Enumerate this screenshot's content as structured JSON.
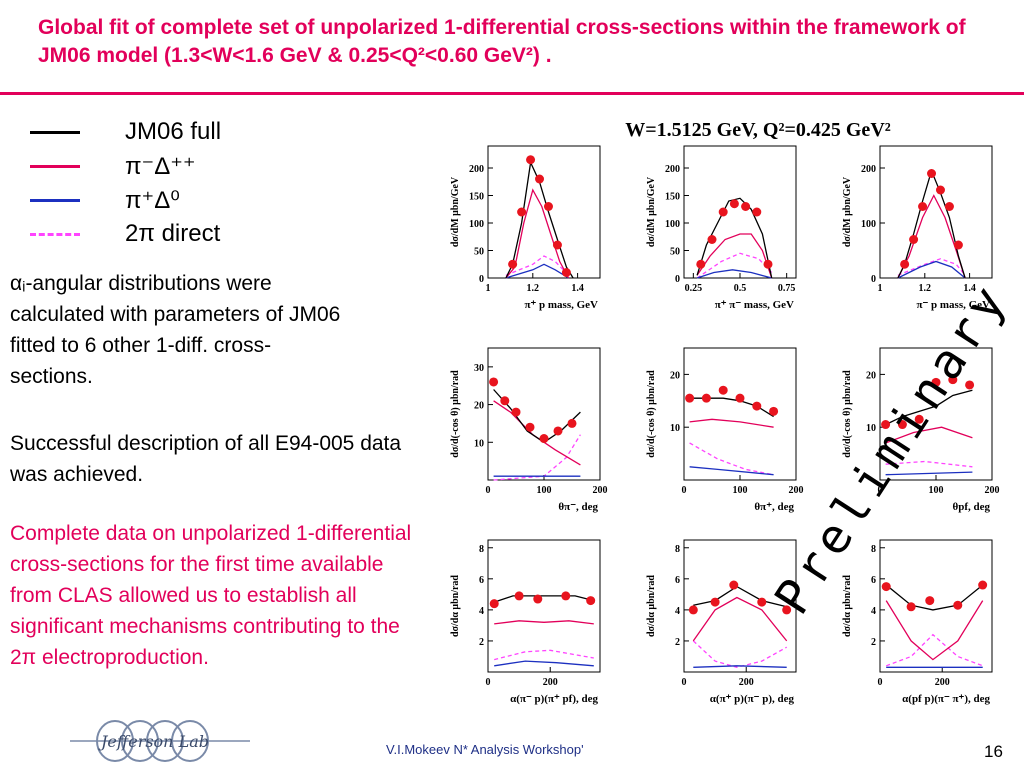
{
  "title": "Global fit of complete set of unpolarized 1-differential cross-sections within the framework of JM06 model (1.3<W<1.6 GeV & 0.25<Q²<0.60 GeV²) .",
  "legend": [
    {
      "label": "JM06 full",
      "color": "#000000",
      "style": "solid"
    },
    {
      "label": "π⁻Δ⁺⁺",
      "color": "#e2005a",
      "style": "solid"
    },
    {
      "label": "π⁺Δ⁰",
      "color": "#1c30c0",
      "style": "solid"
    },
    {
      "label": "2π direct",
      "color": "#ff44ff",
      "style": "dashed"
    }
  ],
  "paragraphs": {
    "p1": "αᵢ-angular distributions were calculated with parameters of JM06  fitted to 6 other 1-diff. cross-sections.",
    "p2": "Successful description of all E94-005 data was achieved.",
    "p3": "Complete data on unpolarized 1-differential cross-sections for the first time available from CLAS allowed us to establish all significant mechanisms contributing to the 2π electroproduction."
  },
  "kinematics_label": "W=1.5125 GeV, Q²=0.425 GeV²",
  "watermark": "Preliminary",
  "footer": {
    "text": "V.I.Mokeev  N* Analysis Workshop'",
    "page": "16",
    "logo": "Jefferson Lab"
  },
  "chart_data": [
    {
      "type": "scatter",
      "ylabel": "dσ/dM μbn/GeV",
      "xlabel": "π⁺ p mass, GeV",
      "xlim": [
        1.0,
        1.5
      ],
      "ylim": [
        0,
        240
      ],
      "xticks": [
        "1",
        "1.2",
        "1.4"
      ],
      "yticks": [
        "0",
        "50",
        "100",
        "150",
        "200"
      ],
      "data": {
        "x": [
          1.11,
          1.15,
          1.19,
          1.23,
          1.27,
          1.31,
          1.35
        ],
        "y": [
          25,
          120,
          215,
          180,
          130,
          60,
          10
        ]
      },
      "full": [
        [
          1.08,
          0
        ],
        [
          1.11,
          25
        ],
        [
          1.15,
          100
        ],
        [
          1.19,
          210
        ],
        [
          1.23,
          175
        ],
        [
          1.27,
          120
        ],
        [
          1.31,
          70
        ],
        [
          1.35,
          20
        ],
        [
          1.38,
          0
        ]
      ],
      "delta_pp": [
        [
          1.08,
          0
        ],
        [
          1.12,
          20
        ],
        [
          1.16,
          100
        ],
        [
          1.2,
          160
        ],
        [
          1.24,
          130
        ],
        [
          1.28,
          80
        ],
        [
          1.32,
          30
        ],
        [
          1.36,
          0
        ]
      ],
      "delta_0": [
        [
          1.08,
          0
        ],
        [
          1.2,
          15
        ],
        [
          1.25,
          25
        ],
        [
          1.3,
          15
        ],
        [
          1.36,
          0
        ]
      ],
      "direct": [
        [
          1.08,
          5
        ],
        [
          1.2,
          25
        ],
        [
          1.25,
          40
        ],
        [
          1.3,
          30
        ],
        [
          1.36,
          5
        ]
      ]
    },
    {
      "type": "scatter",
      "ylabel": "dσ/dM μbn/GeV",
      "xlabel": "π⁺ π⁻ mass, GeV",
      "xlim": [
        0.2,
        0.8
      ],
      "ylim": [
        0,
        240
      ],
      "xticks": [
        "0.25",
        "0.5",
        "0.75"
      ],
      "yticks": [
        "0",
        "50",
        "100",
        "150",
        "200"
      ],
      "data": {
        "x": [
          0.29,
          0.35,
          0.41,
          0.47,
          0.53,
          0.59,
          0.65
        ],
        "y": [
          25,
          70,
          120,
          135,
          130,
          120,
          25
        ]
      },
      "full": [
        [
          0.27,
          5
        ],
        [
          0.32,
          60
        ],
        [
          0.38,
          100
        ],
        [
          0.44,
          140
        ],
        [
          0.5,
          145
        ],
        [
          0.56,
          125
        ],
        [
          0.62,
          80
        ],
        [
          0.67,
          0
        ]
      ],
      "delta_pp": [
        [
          0.27,
          5
        ],
        [
          0.34,
          40
        ],
        [
          0.42,
          70
        ],
        [
          0.5,
          80
        ],
        [
          0.56,
          80
        ],
        [
          0.62,
          50
        ],
        [
          0.67,
          0
        ]
      ],
      "delta_0": [
        [
          0.27,
          0
        ],
        [
          0.36,
          10
        ],
        [
          0.46,
          15
        ],
        [
          0.56,
          10
        ],
        [
          0.67,
          0
        ]
      ],
      "direct": [
        [
          0.27,
          0
        ],
        [
          0.4,
          30
        ],
        [
          0.5,
          45
        ],
        [
          0.6,
          35
        ],
        [
          0.67,
          10
        ]
      ]
    },
    {
      "type": "scatter",
      "ylabel": "dσ/dM μbn/GeV",
      "xlabel": "π⁻ p mass, GeV",
      "xlim": [
        1.0,
        1.5
      ],
      "ylim": [
        0,
        240
      ],
      "xticks": [
        "1",
        "1.2",
        "1.4"
      ],
      "yticks": [
        "0",
        "100",
        "200"
      ],
      "data": {
        "x": [
          1.11,
          1.15,
          1.19,
          1.23,
          1.27,
          1.31,
          1.35
        ],
        "y": [
          25,
          70,
          130,
          190,
          160,
          130,
          60
        ]
      },
      "full": [
        [
          1.08,
          0
        ],
        [
          1.11,
          25
        ],
        [
          1.15,
          80
        ],
        [
          1.19,
          140
        ],
        [
          1.23,
          195
        ],
        [
          1.27,
          155
        ],
        [
          1.31,
          110
        ],
        [
          1.35,
          40
        ],
        [
          1.38,
          0
        ]
      ],
      "delta_pp": [
        [
          1.08,
          0
        ],
        [
          1.13,
          40
        ],
        [
          1.19,
          110
        ],
        [
          1.24,
          150
        ],
        [
          1.29,
          110
        ],
        [
          1.34,
          50
        ],
        [
          1.38,
          0
        ]
      ],
      "delta_0": [
        [
          1.08,
          0
        ],
        [
          1.18,
          20
        ],
        [
          1.25,
          30
        ],
        [
          1.32,
          20
        ],
        [
          1.38,
          0
        ]
      ],
      "direct": [
        [
          1.08,
          5
        ],
        [
          1.2,
          25
        ],
        [
          1.27,
          35
        ],
        [
          1.34,
          25
        ],
        [
          1.38,
          5
        ]
      ]
    },
    {
      "type": "scatter",
      "ylabel": "dσ/d(-cos θ) μbn/rad",
      "xlabel": "θπ⁻, deg",
      "xlim": [
        0,
        200
      ],
      "ylim": [
        0,
        35
      ],
      "xticks": [
        "0",
        "100",
        "200"
      ],
      "yticks": [
        "10",
        "20",
        "30"
      ],
      "data": {
        "x": [
          10,
          30,
          50,
          75,
          100,
          125,
          150
        ],
        "y": [
          26,
          21,
          18,
          14,
          11,
          13,
          15
        ]
      },
      "full": [
        [
          10,
          24
        ],
        [
          40,
          19
        ],
        [
          70,
          13
        ],
        [
          100,
          10
        ],
        [
          130,
          13
        ],
        [
          165,
          18
        ]
      ],
      "delta_pp": [
        [
          10,
          21
        ],
        [
          40,
          18
        ],
        [
          80,
          12
        ],
        [
          120,
          8
        ],
        [
          165,
          4
        ]
      ],
      "delta_0": [
        [
          10,
          1
        ],
        [
          80,
          1
        ],
        [
          165,
          1
        ]
      ],
      "direct": [
        [
          10,
          0
        ],
        [
          100,
          1
        ],
        [
          140,
          6
        ],
        [
          165,
          12
        ]
      ]
    },
    {
      "type": "scatter",
      "ylabel": "dσ/d(-cos θ) μbn/rad",
      "xlabel": "θπ⁺, deg",
      "xlim": [
        0,
        200
      ],
      "ylim": [
        0,
        25
      ],
      "xticks": [
        "0",
        "100",
        "200"
      ],
      "yticks": [
        "10",
        "20"
      ],
      "data": {
        "x": [
          10,
          40,
          70,
          100,
          130,
          160
        ],
        "y": [
          15.5,
          15.5,
          17,
          15.5,
          14,
          13
        ]
      },
      "full": [
        [
          10,
          15.5
        ],
        [
          40,
          15.5
        ],
        [
          70,
          15.5
        ],
        [
          100,
          15
        ],
        [
          130,
          14
        ],
        [
          160,
          12
        ]
      ],
      "delta_pp": [
        [
          10,
          11
        ],
        [
          50,
          11.5
        ],
        [
          100,
          11
        ],
        [
          160,
          10
        ]
      ],
      "delta_0": [
        [
          10,
          2.5
        ],
        [
          60,
          2
        ],
        [
          160,
          1
        ]
      ],
      "direct": [
        [
          10,
          7
        ],
        [
          60,
          4
        ],
        [
          110,
          2
        ],
        [
          160,
          1
        ]
      ]
    },
    {
      "type": "scatter",
      "ylabel": "dσ/d(-cos θ) μbn/rad",
      "xlabel": "θpf, deg",
      "xlim": [
        0,
        200
      ],
      "ylim": [
        0,
        25
      ],
      "xticks": [
        "0",
        "100",
        "200"
      ],
      "yticks": [
        "10",
        "20"
      ],
      "data": {
        "x": [
          10,
          40,
          70,
          100,
          130,
          160
        ],
        "y": [
          10.5,
          10.5,
          11.5,
          18.5,
          19,
          18
        ]
      },
      "full": [
        [
          10,
          10.5
        ],
        [
          40,
          12
        ],
        [
          70,
          13
        ],
        [
          100,
          14
        ],
        [
          130,
          16
        ],
        [
          165,
          17
        ]
      ],
      "delta_pp": [
        [
          10,
          7
        ],
        [
          60,
          9
        ],
        [
          110,
          10
        ],
        [
          165,
          8
        ]
      ],
      "delta_0": [
        [
          10,
          1
        ],
        [
          165,
          1.5
        ]
      ],
      "direct": [
        [
          10,
          3
        ],
        [
          80,
          3.5
        ],
        [
          165,
          2.5
        ]
      ]
    },
    {
      "type": "scatter",
      "ylabel": "dσ/dα μbn/rad",
      "xlabel": "α(π⁻ p)(π⁺ pf), deg",
      "xlim": [
        0,
        360
      ],
      "ylim": [
        0,
        8.5
      ],
      "xticks": [
        "0",
        "200"
      ],
      "yticks": [
        "2",
        "4",
        "6",
        "8"
      ],
      "data": {
        "x": [
          20,
          100,
          160,
          250,
          330
        ],
        "y": [
          4.4,
          4.9,
          4.7,
          4.9,
          4.6
        ]
      },
      "full": [
        [
          20,
          4.5
        ],
        [
          80,
          4.9
        ],
        [
          180,
          4.9
        ],
        [
          280,
          4.9
        ],
        [
          340,
          4.6
        ]
      ],
      "delta_pp": [
        [
          20,
          3.1
        ],
        [
          100,
          3.3
        ],
        [
          180,
          3.2
        ],
        [
          260,
          3.3
        ],
        [
          340,
          3.1
        ]
      ],
      "delta_0": [
        [
          20,
          0.4
        ],
        [
          120,
          0.7
        ],
        [
          220,
          0.6
        ],
        [
          340,
          0.4
        ]
      ],
      "direct": [
        [
          20,
          0.8
        ],
        [
          120,
          1.3
        ],
        [
          200,
          1.4
        ],
        [
          340,
          0.9
        ]
      ]
    },
    {
      "type": "scatter",
      "ylabel": "dσ/dα μbn/rad",
      "xlabel": "α(π⁺ p)(π⁻ p), deg",
      "xlim": [
        0,
        360
      ],
      "ylim": [
        0,
        8.5
      ],
      "xticks": [
        "0",
        "200"
      ],
      "yticks": [
        "2",
        "4",
        "6",
        "8"
      ],
      "data": {
        "x": [
          30,
          100,
          160,
          250,
          330
        ],
        "y": [
          4.0,
          4.5,
          5.6,
          4.5,
          4.0
        ]
      },
      "full": [
        [
          30,
          4.3
        ],
        [
          100,
          4.6
        ],
        [
          170,
          5.5
        ],
        [
          250,
          4.6
        ],
        [
          330,
          4.2
        ]
      ],
      "delta_pp": [
        [
          30,
          2.0
        ],
        [
          100,
          4.0
        ],
        [
          170,
          4.8
        ],
        [
          250,
          4.0
        ],
        [
          330,
          2.0
        ]
      ],
      "delta_0": [
        [
          30,
          0.3
        ],
        [
          170,
          0.4
        ],
        [
          330,
          0.3
        ]
      ],
      "direct": [
        [
          30,
          2.0
        ],
        [
          100,
          0.7
        ],
        [
          170,
          0.3
        ],
        [
          250,
          0.7
        ],
        [
          330,
          1.6
        ]
      ]
    },
    {
      "type": "scatter",
      "ylabel": "dσ/dα μbn/rad",
      "xlabel": "α(pf p)(π⁻ π⁺), deg",
      "xlim": [
        0,
        360
      ],
      "ylim": [
        0,
        8.5
      ],
      "xticks": [
        "0",
        "200"
      ],
      "yticks": [
        "2",
        "4",
        "6",
        "8"
      ],
      "data": {
        "x": [
          20,
          100,
          160,
          250,
          330
        ],
        "y": [
          5.5,
          4.2,
          4.6,
          4.3,
          5.6
        ]
      },
      "full": [
        [
          20,
          5.6
        ],
        [
          100,
          4.3
        ],
        [
          170,
          4.0
        ],
        [
          250,
          4.3
        ],
        [
          330,
          5.6
        ]
      ],
      "delta_pp": [
        [
          20,
          4.6
        ],
        [
          100,
          2.0
        ],
        [
          170,
          0.8
        ],
        [
          250,
          2.0
        ],
        [
          330,
          4.6
        ]
      ],
      "delta_0": [
        [
          20,
          0.3
        ],
        [
          170,
          0.3
        ],
        [
          330,
          0.3
        ]
      ],
      "direct": [
        [
          20,
          0.4
        ],
        [
          100,
          1.0
        ],
        [
          170,
          2.4
        ],
        [
          250,
          1.0
        ],
        [
          330,
          0.4
        ]
      ]
    }
  ]
}
